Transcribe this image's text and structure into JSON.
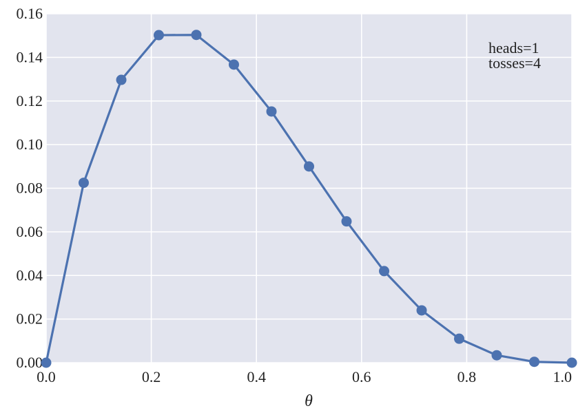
{
  "chart_data": {
    "type": "line",
    "title": "",
    "xlabel": "θ",
    "ylabel": "",
    "xlim": [
      0.0,
      1.0
    ],
    "ylim": [
      0.0,
      0.16
    ],
    "xticks": [
      "0.0",
      "0.2",
      "0.4",
      "0.6",
      "0.8",
      "1.0"
    ],
    "yticks": [
      "0.00",
      "0.02",
      "0.04",
      "0.06",
      "0.08",
      "0.10",
      "0.12",
      "0.14",
      "0.16"
    ],
    "grid": true,
    "annotations": [
      "heads=1",
      "tosses=4"
    ],
    "series": [
      {
        "color": "#4c72b0",
        "marker": "circle",
        "x": [
          0.0,
          0.0714,
          0.1429,
          0.2143,
          0.2857,
          0.3571,
          0.4286,
          0.5,
          0.5714,
          0.6429,
          0.7143,
          0.7857,
          0.8571,
          0.9286,
          1.0
        ],
        "y": [
          0.0,
          0.0825,
          0.1297,
          0.1502,
          0.1503,
          0.1367,
          0.1152,
          0.09,
          0.0648,
          0.042,
          0.024,
          0.011,
          0.0034,
          0.0004,
          0.0
        ]
      }
    ]
  },
  "colors": {
    "plot_background": "#e2e4ee",
    "grid": "#ffffff",
    "line": "#4c72b0"
  }
}
